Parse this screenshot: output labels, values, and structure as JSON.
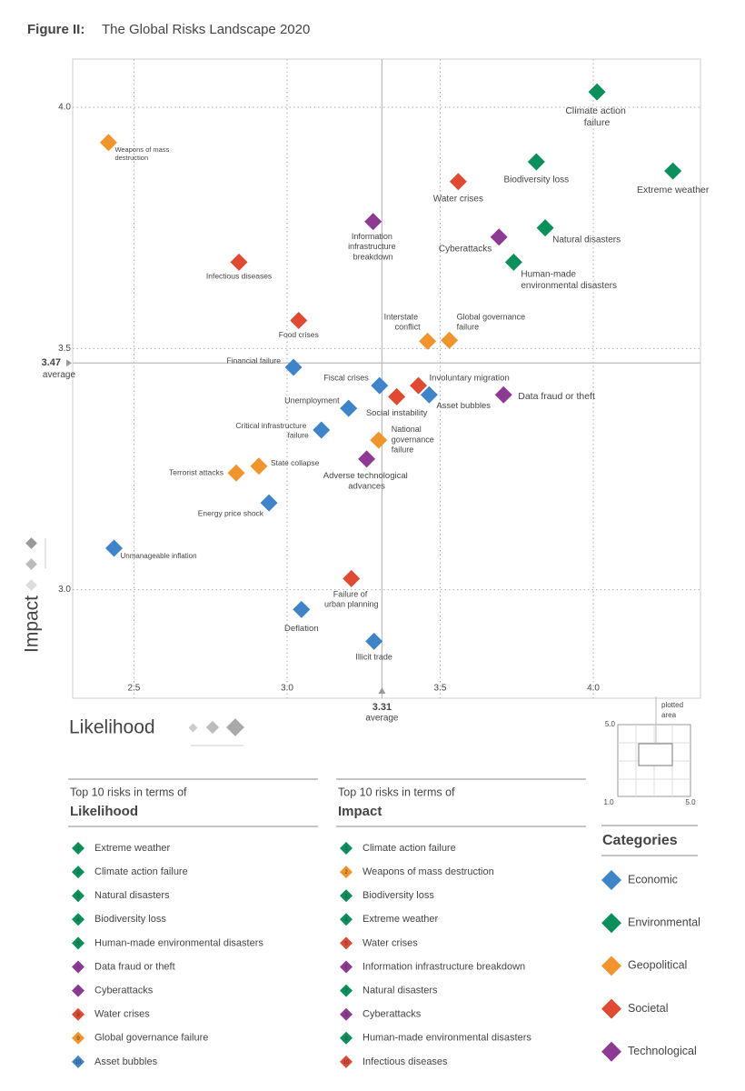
{
  "chart_data": {
    "type": "scatter",
    "title_label": "Figure II:",
    "title": "The Global Risks Landscape 2020",
    "xlabel": "Likelihood",
    "ylabel": "Impact",
    "xlim": [
      2.3,
      4.35
    ],
    "ylim": [
      2.79,
      4.1
    ],
    "xticks": [
      {
        "value": 2.5,
        "label": "2.5"
      },
      {
        "value": 3,
        "label": "3.0"
      },
      {
        "value": 3.5,
        "label": "3.5"
      },
      {
        "value": 4,
        "label": "4.0"
      }
    ],
    "yticks": [
      {
        "value": 3,
        "label": "3.0"
      },
      {
        "value": 3.5,
        "label": "3.5"
      },
      {
        "value": 4,
        "label": "4.0"
      }
    ],
    "grid": true,
    "x_average": 3.31,
    "x_average_label": "average",
    "y_average": 3.47,
    "y_average_label": "average",
    "legend_title": "Categories",
    "series": [
      {
        "name": "Economic",
        "color": "#3f83c8",
        "labels": [
          "Financial failure",
          "Fiscal crises",
          "Asset bubbles",
          "Unemployment",
          "Critical infrastructure failure",
          "Energy price shock",
          "Unmanageable inflation",
          "Deflation",
          "Illicit trade"
        ],
        "x": [
          3.021,
          3.302,
          3.464,
          3.201,
          3.112,
          2.941,
          2.435,
          3.047,
          3.284
        ],
        "values": [
          3.461,
          3.423,
          3.404,
          3.376,
          3.331,
          3.18,
          3.086,
          2.959,
          2.893
        ]
      },
      {
        "name": "Environmental",
        "color": "#0b8f5b",
        "labels": [
          "Climate action failure",
          "Extreme weather",
          "Biodiversity loss",
          "Natural disasters",
          "Human-made environmental disasters"
        ],
        "x": [
          4.012,
          4.26,
          3.814,
          3.843,
          3.74
        ],
        "values": [
          4.032,
          3.868,
          3.887,
          3.75,
          3.679
        ]
      },
      {
        "name": "Geopolitical",
        "color": "#f0952d",
        "labels": [
          "Weapons of mass destruction",
          "Interstate conflict",
          "Global governance failure",
          "National governance failure",
          "State collapse",
          "Terrorist attacks"
        ],
        "x": [
          2.417,
          3.459,
          3.53,
          3.299,
          2.908,
          2.834
        ],
        "values": [
          3.927,
          3.515,
          3.517,
          3.31,
          3.256,
          3.242
        ]
      },
      {
        "name": "Societal",
        "color": "#e04a33",
        "labels": [
          "Water crises",
          "Infectious diseases",
          "Food crises",
          "Involuntary migration",
          "Social instability",
          "Failure of urban planning"
        ],
        "x": [
          3.559,
          2.843,
          3.038,
          3.429,
          3.358,
          3.21
        ],
        "values": [
          3.846,
          3.679,
          3.558,
          3.423,
          3.4,
          3.023
        ]
      },
      {
        "name": "Technological",
        "color": "#8e3a95",
        "labels": [
          "Information infrastructure breakdown",
          "Cyberattacks",
          "Data fraud or theft",
          "Adverse technological advances"
        ],
        "x": [
          3.281,
          3.692,
          3.707,
          3.26
        ],
        "values": [
          3.763,
          3.731,
          3.404,
          3.271
        ]
      }
    ]
  },
  "inset": {
    "label": "plotted area",
    "y_top": "5.0",
    "x_left": "1.0",
    "x_right": "5.0"
  },
  "top10_likelihood": {
    "heading": "Top 10 risks in terms of",
    "title": "Likelihood",
    "items": [
      {
        "rank": 1,
        "label": "Extreme weather",
        "color": "#0b8f5b"
      },
      {
        "rank": 2,
        "label": "Climate action failure",
        "color": "#0b8f5b"
      },
      {
        "rank": 3,
        "label": "Natural disasters",
        "color": "#0b8f5b"
      },
      {
        "rank": 4,
        "label": "Biodiversity loss",
        "color": "#0b8f5b"
      },
      {
        "rank": 5,
        "label": "Human-made environmental disasters",
        "color": "#0b8f5b"
      },
      {
        "rank": 6,
        "label": "Data fraud or theft",
        "color": "#8e3a95"
      },
      {
        "rank": 7,
        "label": "Cyberattacks",
        "color": "#8e3a95"
      },
      {
        "rank": 8,
        "label": "Water crises",
        "color": "#e04a33"
      },
      {
        "rank": 9,
        "label": "Global governance failure",
        "color": "#f0952d"
      },
      {
        "rank": 10,
        "label": "Asset bubbles",
        "color": "#3f83c8"
      }
    ]
  },
  "top10_impact": {
    "heading": "Top 10 risks in terms of",
    "title": "Impact",
    "items": [
      {
        "rank": 1,
        "label": "Climate action failure",
        "color": "#0b8f5b"
      },
      {
        "rank": 2,
        "label": "Weapons of mass destruction",
        "color": "#f0952d"
      },
      {
        "rank": 3,
        "label": "Biodiversity loss",
        "color": "#0b8f5b"
      },
      {
        "rank": 4,
        "label": "Extreme weather",
        "color": "#0b8f5b"
      },
      {
        "rank": 5,
        "label": "Water crises",
        "color": "#e04a33"
      },
      {
        "rank": 6,
        "label": "Information infrastructure breakdown",
        "color": "#8e3a95"
      },
      {
        "rank": 7,
        "label": "Natural disasters",
        "color": "#0b8f5b"
      },
      {
        "rank": 8,
        "label": "Cyberattacks",
        "color": "#8e3a95"
      },
      {
        "rank": 9,
        "label": "Human-made environmental disasters",
        "color": "#0b8f5b"
      },
      {
        "rank": 10,
        "label": "Infectious diseases",
        "color": "#e04a33"
      }
    ]
  }
}
